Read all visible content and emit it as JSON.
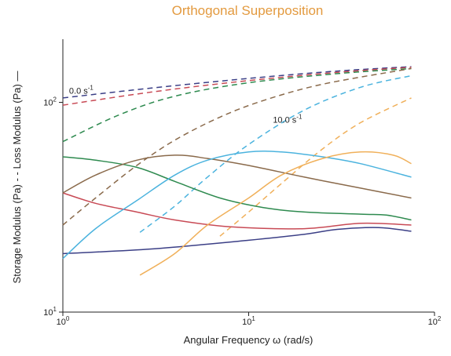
{
  "chart_data": {
    "type": "line",
    "title": "Orthogonal Superposition",
    "xlabel": "Angular Frequency ω (rad/s)",
    "ylabel": "Storage Modulus (Pa) -  -  Loss Modulus (Pa) —",
    "xscale": "log",
    "yscale": "log",
    "xlim": [
      1,
      100
    ],
    "ylim": [
      10,
      200
    ],
    "x_ticks": [
      {
        "value": 1,
        "base": "10",
        "exp": "0"
      },
      {
        "value": 10,
        "base": "10",
        "exp": "1"
      },
      {
        "value": 100,
        "base": "10",
        "exp": "2"
      }
    ],
    "y_ticks": [
      {
        "value": 10,
        "base": "10",
        "exp": "1"
      },
      {
        "value": 100,
        "base": "10",
        "exp": "2"
      }
    ],
    "annotations": [
      {
        "text": "0.0 s",
        "sup": "-1",
        "x": 1.08,
        "y": 110
      },
      {
        "text": "10.0 s",
        "sup": "-1",
        "x": 13.5,
        "y": 80
      }
    ],
    "series": [
      {
        "modulus": "storage",
        "color": "#3b3f86",
        "style": "dashed",
        "x": [
          1,
          3,
          10,
          30,
          75
        ],
        "y": [
          105,
          117,
          130,
          141,
          148
        ]
      },
      {
        "modulus": "storage",
        "color": "#c84a55",
        "style": "dashed",
        "x": [
          1,
          3,
          10,
          30,
          75
        ],
        "y": [
          97,
          112,
          127,
          139,
          147
        ]
      },
      {
        "modulus": "storage",
        "color": "#2e8a4f",
        "style": "dashed",
        "x": [
          1,
          2,
          4,
          10,
          30,
          75
        ],
        "y": [
          65,
          87,
          107,
          124,
          137,
          145
        ]
      },
      {
        "modulus": "storage",
        "color": "#8a6a4b",
        "style": "dashed",
        "x": [
          1,
          1.5,
          2.5,
          4,
          7,
          12,
          25,
          75
        ],
        "y": [
          26,
          35,
          50,
          66,
          85,
          102,
          122,
          145
        ]
      },
      {
        "modulus": "storage",
        "color": "#4bb3de",
        "style": "dashed",
        "x": [
          2.6,
          4,
          6,
          10,
          20,
          40,
          75
        ],
        "y": [
          24,
          32,
          44,
          63,
          92,
          118,
          134
        ]
      },
      {
        "modulus": "storage",
        "color": "#f0b05a",
        "style": "dashed",
        "x": [
          7,
          10,
          15,
          25,
          40,
          75
        ],
        "y": [
          23,
          30,
          41,
          60,
          80,
          105
        ]
      },
      {
        "modulus": "loss",
        "color": "#3b3f86",
        "style": "solid",
        "x": [
          1,
          3,
          10,
          20,
          30,
          50,
          75
        ],
        "y": [
          19,
          20,
          22,
          23.5,
          24.8,
          25.3,
          24.3
        ]
      },
      {
        "modulus": "loss",
        "color": "#c84a55",
        "style": "solid",
        "x": [
          1,
          1.5,
          2.5,
          4,
          8,
          20,
          40,
          75
        ],
        "y": [
          37,
          33,
          30,
          27.5,
          25.5,
          25,
          26.5,
          26
        ]
      },
      {
        "modulus": "loss",
        "color": "#2e8a4f",
        "style": "solid",
        "x": [
          1,
          1.5,
          2.5,
          4,
          7,
          12,
          20,
          40,
          55,
          75
        ],
        "y": [
          55,
          53,
          49,
          42,
          35,
          31.5,
          30,
          29.3,
          29,
          27.5
        ]
      },
      {
        "modulus": "loss",
        "color": "#8a6a4b",
        "style": "solid",
        "x": [
          1,
          1.5,
          2.5,
          4,
          6,
          10,
          20,
          40,
          75
        ],
        "y": [
          37,
          45,
          53,
          56,
          54,
          50,
          44,
          39,
          35
        ]
      },
      {
        "modulus": "loss",
        "color": "#4bb3de",
        "style": "solid",
        "x": [
          1,
          1.5,
          2.5,
          4,
          6,
          10,
          15,
          25,
          40,
          75
        ],
        "y": [
          18,
          25,
          34,
          45,
          53,
          58,
          58,
          55,
          51,
          44
        ]
      },
      {
        "modulus": "loss",
        "color": "#f0b05a",
        "style": "solid",
        "x": [
          2.6,
          4,
          6,
          10,
          15,
          25,
          40,
          60,
          75
        ],
        "y": [
          15,
          19,
          26,
          35,
          45,
          54,
          58,
          56,
          51
        ]
      }
    ]
  }
}
